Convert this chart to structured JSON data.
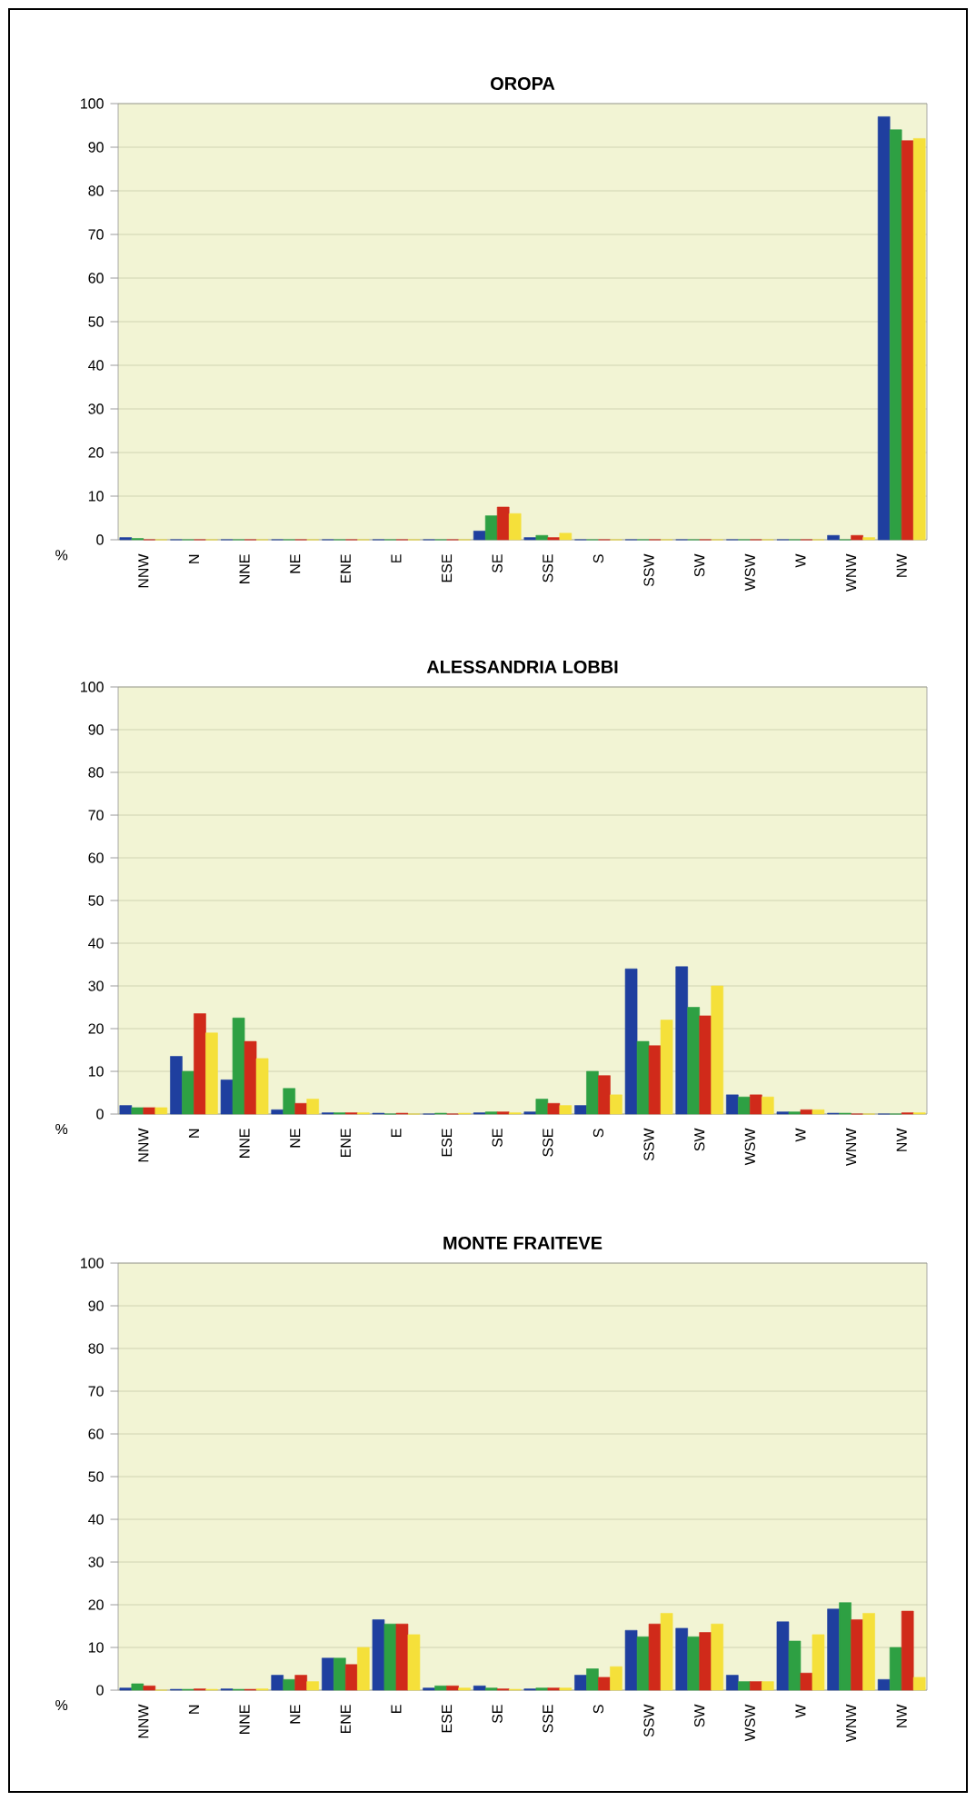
{
  "chart_data": [
    {
      "type": "bar",
      "title": "OROPA",
      "ylabel": "%",
      "ylim": [
        0,
        100
      ],
      "yticks": [
        0,
        10,
        20,
        30,
        40,
        50,
        60,
        70,
        80,
        90,
        100
      ],
      "grid": "y",
      "categories": [
        "NNW",
        "N",
        "NNE",
        "NE",
        "ENE",
        "E",
        "ESE",
        "SE",
        "SSE",
        "S",
        "SSW",
        "SW",
        "WSW",
        "W",
        "WNW",
        "NW"
      ],
      "series": [
        {
          "color": "#1f3f9f",
          "values": [
            0.5,
            0,
            0,
            0,
            0,
            0,
            0,
            2,
            0.5,
            0,
            0,
            0,
            0,
            0,
            1,
            97
          ]
        },
        {
          "color": "#2ea043",
          "values": [
            0.3,
            0,
            0,
            0,
            0,
            0,
            0,
            5.5,
            1,
            0,
            0,
            0,
            0,
            0,
            0,
            94
          ]
        },
        {
          "color": "#d02a1a",
          "values": [
            0,
            0,
            0,
            0,
            0,
            0,
            0,
            7.5,
            0.5,
            0,
            0,
            0,
            0,
            0,
            1,
            91.5
          ]
        },
        {
          "color": "#f5e03a",
          "values": [
            0,
            0,
            0,
            0,
            0,
            0,
            0,
            6,
            1.5,
            0,
            0,
            0,
            0,
            0,
            0.5,
            92
          ]
        }
      ]
    },
    {
      "type": "bar",
      "title": "ALESSANDRIA LOBBI",
      "ylabel": "%",
      "ylim": [
        0,
        100
      ],
      "yticks": [
        0,
        10,
        20,
        30,
        40,
        50,
        60,
        70,
        80,
        90,
        100
      ],
      "grid": "y",
      "categories": [
        "NNW",
        "N",
        "NNE",
        "NE",
        "ENE",
        "E",
        "ESE",
        "SE",
        "SSE",
        "S",
        "SSW",
        "SW",
        "WSW",
        "W",
        "WNW",
        "NW"
      ],
      "series": [
        {
          "color": "#1f3f9f",
          "values": [
            2,
            13.5,
            8,
            1,
            0.3,
            0.2,
            0,
            0.3,
            0.5,
            2,
            34,
            34.5,
            4.5,
            0.5,
            0.2,
            0
          ]
        },
        {
          "color": "#2ea043",
          "values": [
            1.5,
            10,
            22.5,
            6,
            0.3,
            0,
            0.2,
            0.5,
            3.5,
            10,
            17,
            25,
            4,
            0.5,
            0.2,
            0
          ]
        },
        {
          "color": "#d02a1a",
          "values": [
            1.5,
            23.5,
            17,
            2.5,
            0.3,
            0.2,
            0,
            0.5,
            2.5,
            9,
            16,
            23,
            4.5,
            1,
            0,
            0.3
          ]
        },
        {
          "color": "#f5e03a",
          "values": [
            1.5,
            19,
            13,
            3.5,
            0.3,
            0,
            0.2,
            0.3,
            2,
            4.5,
            22,
            30,
            4,
            1,
            0,
            0.3
          ]
        }
      ]
    },
    {
      "type": "bar",
      "title": "MONTE FRAITEVE",
      "ylabel": "%",
      "ylim": [
        0,
        100
      ],
      "yticks": [
        0,
        10,
        20,
        30,
        40,
        50,
        60,
        70,
        80,
        90,
        100
      ],
      "grid": "y",
      "categories": [
        "NNW",
        "N",
        "NNE",
        "NE",
        "ENE",
        "E",
        "ESE",
        "SE",
        "SSE",
        "S",
        "SSW",
        "SW",
        "WSW",
        "W",
        "WNW",
        "NW"
      ],
      "series": [
        {
          "color": "#1f3f9f",
          "values": [
            0.5,
            0.2,
            0.3,
            3.5,
            7.5,
            16.5,
            0.5,
            1,
            0.3,
            3.5,
            14,
            14.5,
            3.5,
            16,
            19,
            2.5
          ]
        },
        {
          "color": "#2ea043",
          "values": [
            1.5,
            0.2,
            0.2,
            2.5,
            7.5,
            15.5,
            1,
            0.5,
            0.5,
            5,
            12.5,
            12.5,
            2,
            11.5,
            20.5,
            10
          ]
        },
        {
          "color": "#d02a1a",
          "values": [
            1,
            0.3,
            0.2,
            3.5,
            6,
            15.5,
            1,
            0.3,
            0.5,
            3,
            15.5,
            13.5,
            2,
            4,
            16.5,
            18.5
          ]
        },
        {
          "color": "#f5e03a",
          "values": [
            0,
            0.2,
            0.3,
            2,
            10,
            13,
            0.5,
            0.2,
            0.5,
            5.5,
            18,
            15.5,
            2,
            13,
            18,
            3
          ]
        }
      ]
    }
  ]
}
